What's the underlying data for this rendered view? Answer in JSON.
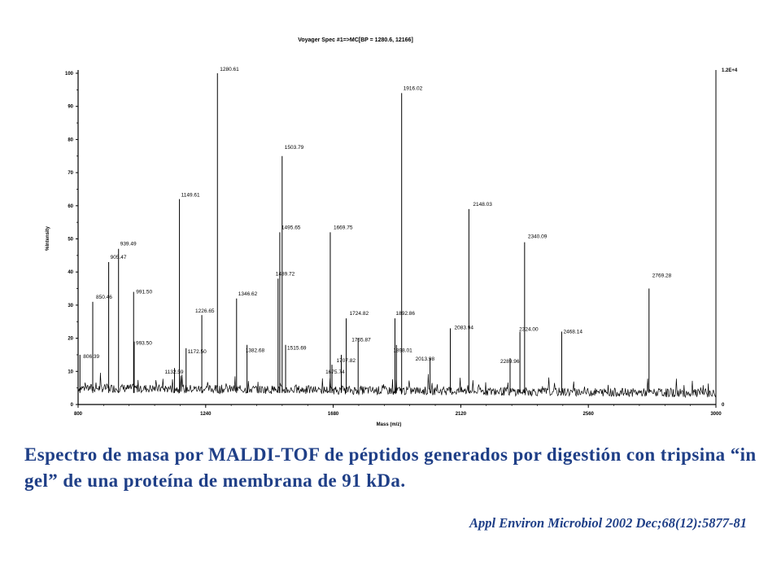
{
  "chart_data": {
    "type": "line",
    "title": "Voyager Spec #1=>MC[BP = 1280.6, 12166]",
    "xlabel": "Mass (m/z)",
    "ylabel": "%Intensity",
    "xlim": [
      800,
      3000
    ],
    "ylim": [
      0,
      100
    ],
    "x_ticks": [
      800,
      1240,
      1680,
      2120,
      2560,
      3000
    ],
    "y_ticks": [
      0,
      10,
      20,
      30,
      40,
      50,
      60,
      70,
      80,
      90,
      100
    ],
    "right_axis_top": "1.2E+4",
    "right_axis_bottom": "0",
    "baseline": 5,
    "peaks": [
      {
        "label": "806.39",
        "x": 806.4,
        "y": 15
      },
      {
        "label": "850.46",
        "x": 850.5,
        "y": 31
      },
      {
        "label": "905.47",
        "x": 905.5,
        "y": 43
      },
      {
        "label": "939.49",
        "x": 939.5,
        "y": 47
      },
      {
        "label": "991.50",
        "x": 991.5,
        "y": 34
      },
      {
        "label": "993.50",
        "x": 993.5,
        "y": 19
      },
      {
        "label": "1132.59",
        "x": 1132.6,
        "y": 11
      },
      {
        "label": "1149.61",
        "x": 1149.6,
        "y": 62
      },
      {
        "label": "1172.50",
        "x": 1172.5,
        "y": 17
      },
      {
        "label": "1226.65",
        "x": 1226.7,
        "y": 27
      },
      {
        "label": "1280.61",
        "x": 1280.6,
        "y": 100
      },
      {
        "label": "1346.62",
        "x": 1346.6,
        "y": 32
      },
      {
        "label": "1382.68",
        "x": 1382.7,
        "y": 18
      },
      {
        "label": "1489.72",
        "x": 1489.7,
        "y": 38
      },
      {
        "label": "1495.65",
        "x": 1495.7,
        "y": 52
      },
      {
        "label": "1503.79",
        "x": 1503.8,
        "y": 75
      },
      {
        "label": "1515.69",
        "x": 1515.7,
        "y": 18
      },
      {
        "label": "1669.75",
        "x": 1669.8,
        "y": 52
      },
      {
        "label": "1675.74",
        "x": 1675.7,
        "y": 12
      },
      {
        "label": "1707.82",
        "x": 1707.8,
        "y": 15
      },
      {
        "label": "1724.82",
        "x": 1724.8,
        "y": 26
      },
      {
        "label": "1765.87",
        "x": 1765.9,
        "y": 20
      },
      {
        "label": "1892.86",
        "x": 1892.9,
        "y": 26
      },
      {
        "label": "1898.01",
        "x": 1898.0,
        "y": 18
      },
      {
        "label": "1916.02",
        "x": 1916.0,
        "y": 94
      },
      {
        "label": "2013.98",
        "x": 2014.0,
        "y": 14
      },
      {
        "label": "2083.94",
        "x": 2083.9,
        "y": 23
      },
      {
        "label": "2148.03",
        "x": 2148.0,
        "y": 59
      },
      {
        "label": "2289.96",
        "x": 2290.0,
        "y": 14
      },
      {
        "label": "2324.00",
        "x": 2324.0,
        "y": 22
      },
      {
        "label": "2340.09",
        "x": 2340.1,
        "y": 49
      },
      {
        "label": "2468.14",
        "x": 2468.1,
        "y": 22
      },
      {
        "label": "2769.28",
        "x": 2769.3,
        "y": 35
      }
    ]
  },
  "caption": "Espectro de masa por MALDI-TOF de péptidos generados por digestión con tripsina “in gel” de una proteína de membrana de 91 kDa.",
  "citation": "Appl Environ Microbiol 2002 Dec;68(12):5877-81",
  "colors": {
    "text_blue": "#1f3f87",
    "plot": "#000000"
  }
}
